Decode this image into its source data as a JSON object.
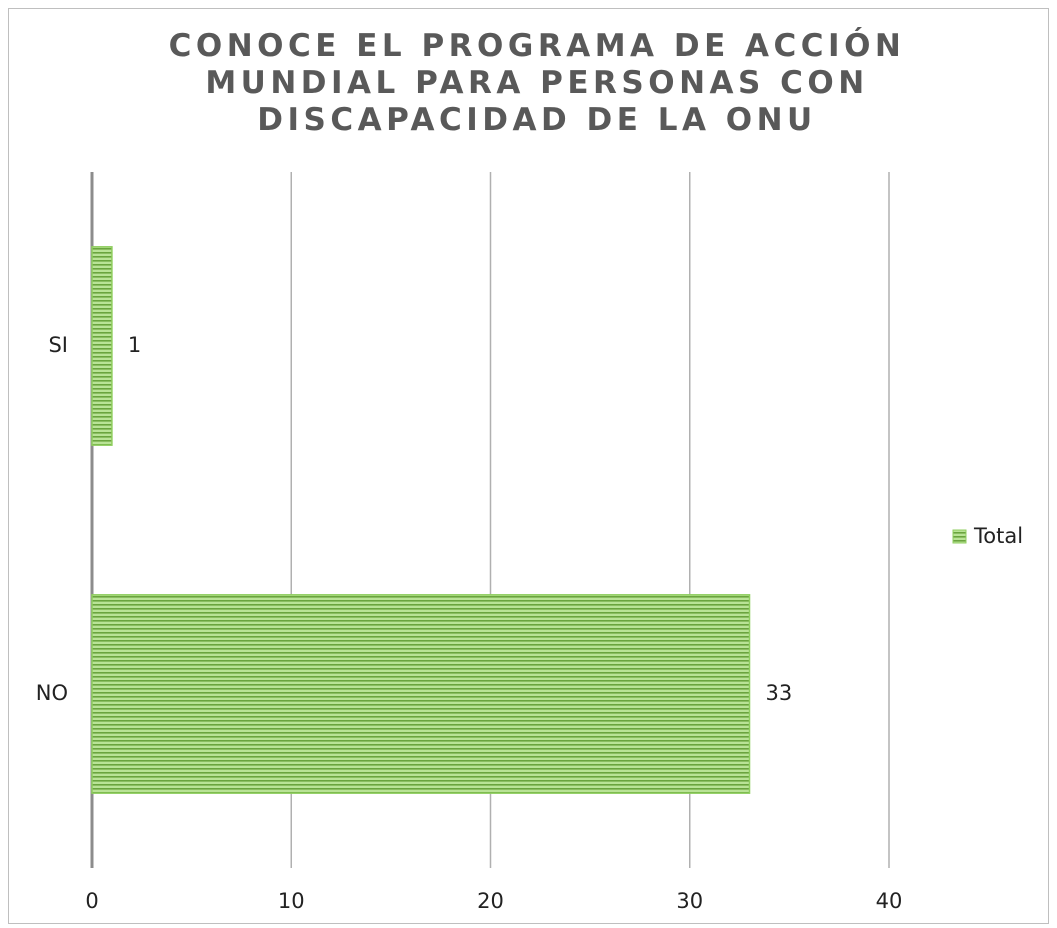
{
  "chart_data": {
    "type": "bar",
    "orientation": "horizontal",
    "title": "CONOCE EL PROGRAMA DE ACCIÓN MUNDIAL PARA PERSONAS CON DISCAPACIDAD DE LA ONU",
    "categories": [
      "SI",
      "NO"
    ],
    "series": [
      {
        "name": "Total",
        "color": "#8fce5f",
        "values": [
          1,
          33
        ]
      }
    ],
    "xlim": [
      0,
      40
    ],
    "xticks": [
      0,
      10,
      20,
      30,
      40
    ],
    "grid": true,
    "legend": "right"
  }
}
